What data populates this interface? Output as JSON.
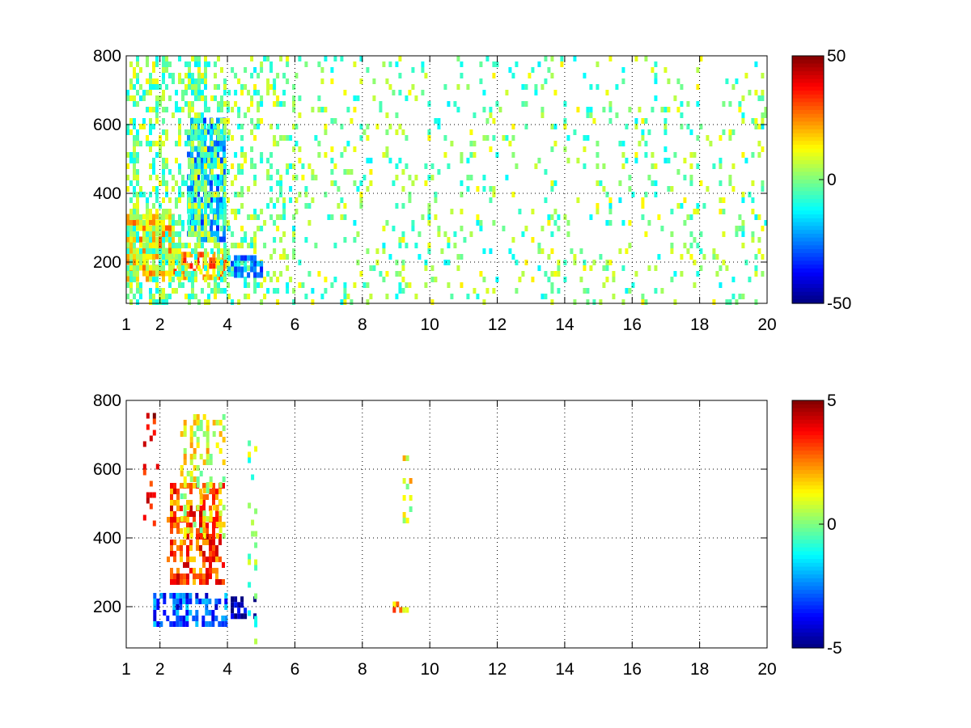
{
  "chart_data": [
    {
      "type": "heatmap",
      "title": "",
      "xlabel": "",
      "ylabel": "",
      "xlim": [
        1,
        20
      ],
      "ylim": [
        80,
        800
      ],
      "xticks": [
        "1",
        "2",
        "4",
        "6",
        "8",
        "10",
        "12",
        "14",
        "16",
        "18",
        "20"
      ],
      "xtick_values": [
        1,
        2,
        4,
        6,
        8,
        10,
        12,
        14,
        16,
        18,
        20
      ],
      "yticks": [
        "200",
        "400",
        "600",
        "800"
      ],
      "ytick_values": [
        200,
        400,
        600,
        800
      ],
      "grid": true,
      "colorbar": {
        "range": [
          -50,
          50
        ],
        "ticks": [
          "50",
          "0",
          "-50"
        ],
        "tick_values": [
          50,
          0,
          -50
        ],
        "colormap": "jet"
      },
      "regions": [
        {
          "x": [
            1.0,
            2.4
          ],
          "y": [
            150,
            340
          ],
          "value": 15,
          "density": 0.75
        },
        {
          "x": [
            2.4,
            4.0
          ],
          "y": [
            160,
            230
          ],
          "value": 22,
          "density": 0.7
        },
        {
          "x": [
            2.8,
            3.9
          ],
          "y": [
            260,
            620
          ],
          "value": -20,
          "density": 0.75
        },
        {
          "x": [
            1.0,
            4.0
          ],
          "y": [
            80,
            800
          ],
          "value": 0,
          "density": 0.45
        },
        {
          "x": [
            4.0,
            6.0
          ],
          "y": [
            80,
            800
          ],
          "value": 0,
          "density": 0.25
        },
        {
          "x": [
            4.0,
            5.0
          ],
          "y": [
            170,
            220
          ],
          "value": -22,
          "density": 0.6
        },
        {
          "x": [
            6.0,
            20.0
          ],
          "y": [
            80,
            800
          ],
          "value": 0,
          "density": 0.12
        }
      ]
    },
    {
      "type": "heatmap",
      "title": "",
      "xlabel": "",
      "ylabel": "",
      "xlim": [
        1,
        20
      ],
      "ylim": [
        80,
        800
      ],
      "xticks": [
        "1",
        "2",
        "4",
        "6",
        "8",
        "10",
        "12",
        "14",
        "16",
        "18",
        "20"
      ],
      "xtick_values": [
        1,
        2,
        4,
        6,
        8,
        10,
        12,
        14,
        16,
        18,
        20
      ],
      "yticks": [
        "200",
        "400",
        "600",
        "800"
      ],
      "ytick_values": [
        200,
        400,
        600,
        800
      ],
      "grid": true,
      "colorbar": {
        "range": [
          -5,
          5
        ],
        "ticks": [
          "5",
          "0",
          "-5"
        ],
        "tick_values": [
          5,
          0,
          -5
        ],
        "colormap": "jet"
      },
      "regions": [
        {
          "x": [
            2.2,
            3.9
          ],
          "y": [
            270,
            560
          ],
          "value": 3,
          "density": 0.5
        },
        {
          "x": [
            2.6,
            3.9
          ],
          "y": [
            400,
            760
          ],
          "value": 1,
          "density": 0.3
        },
        {
          "x": [
            1.8,
            4.0
          ],
          "y": [
            150,
            240
          ],
          "value": -3,
          "density": 0.55
        },
        {
          "x": [
            4.0,
            4.8
          ],
          "y": [
            170,
            230
          ],
          "value": -4.5,
          "density": 0.5
        },
        {
          "x": [
            1.5,
            1.9
          ],
          "y": [
            400,
            780
          ],
          "value": 4,
          "density": 0.15
        },
        {
          "x": [
            4.6,
            4.8
          ],
          "y": [
            100,
            700
          ],
          "value": 0,
          "density": 0.25
        },
        {
          "x": [
            8.9,
            9.4
          ],
          "y": [
            195,
            215
          ],
          "value": 2,
          "density": 0.6
        },
        {
          "x": [
            9.1,
            9.4
          ],
          "y": [
            380,
            640
          ],
          "value": 1,
          "density": 0.15
        }
      ]
    }
  ]
}
